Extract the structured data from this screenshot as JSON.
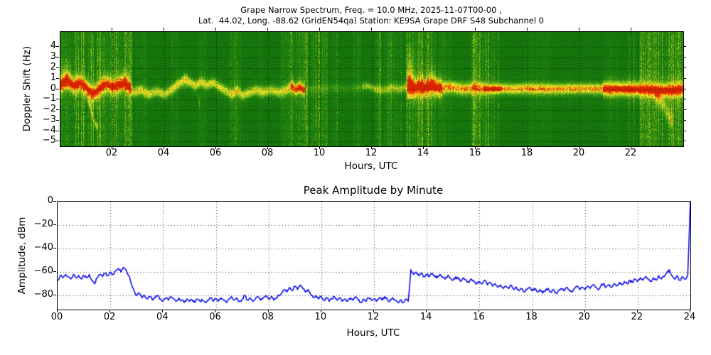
{
  "figure": {
    "title_line1": "Grape Narrow Spectrum, Freq. = 10.0 MHz, 2025-11-07T00-00 ,",
    "title_line2": "Lat.  44.02, Long. -88.62 (GridEN54qa) Station: KE9SA Grape DRF S48 Subchannel 0"
  },
  "chart_data": [
    {
      "type": "heatmap",
      "name": "doppler-spectrogram",
      "title": "Grape Narrow Spectrum, Freq. = 10.0 MHz, 2025-11-07T00-00 , Lat. 44.02, Long. -88.62 (GridEN54qa) Station: KE9SA Grape DRF S48 Subchannel 0",
      "xlabel": "Hours, UTC",
      "ylabel": "Doppler Shift (Hz)",
      "x_range": [
        0,
        24
      ],
      "y_range": [
        -5.45,
        5.45
      ],
      "x_tick_values": [
        2,
        4,
        6,
        8,
        10,
        12,
        14,
        16,
        18,
        20,
        22
      ],
      "x_tick_labels": [
        "02",
        "04",
        "06",
        "08",
        "10",
        "12",
        "14",
        "16",
        "18",
        "20",
        "22"
      ],
      "y_tick_values": [
        4,
        3,
        2,
        1,
        0,
        -1,
        -2,
        -3,
        -4,
        -5
      ],
      "grid": true,
      "colormap_stops": [
        [
          0,
          10,
          95,
          10
        ],
        [
          0.25,
          30,
          130,
          15
        ],
        [
          0.45,
          110,
          180,
          25
        ],
        [
          0.6,
          205,
          220,
          35
        ],
        [
          0.72,
          250,
          235,
          45
        ],
        [
          0.85,
          255,
          150,
          10
        ],
        [
          1,
          215,
          35,
          0
        ]
      ],
      "background_level": 0.1,
      "noise_stripes": [
        [
          0.0,
          0.6,
          0.35
        ],
        [
          0.6,
          2.75,
          0.5
        ],
        [
          2.9,
          3.35,
          0.2
        ],
        [
          4.25,
          4.55,
          0.18
        ],
        [
          5.3,
          5.6,
          0.15
        ],
        [
          6.5,
          6.95,
          0.3
        ],
        [
          7.6,
          7.8,
          0.12
        ],
        [
          8.45,
          9.55,
          0.42
        ],
        [
          9.65,
          10.3,
          0.45
        ],
        [
          10.45,
          10.7,
          0.2
        ],
        [
          11.25,
          11.55,
          0.22
        ],
        [
          12.1,
          12.35,
          0.38
        ],
        [
          12.45,
          13.15,
          0.3
        ],
        [
          13.3,
          14.45,
          0.55
        ],
        [
          14.55,
          15.05,
          0.22
        ],
        [
          15.8,
          16.55,
          0.45
        ],
        [
          16.6,
          16.9,
          0.28
        ],
        [
          17.9,
          18.9,
          0.15
        ],
        [
          21.0,
          21.5,
          0.15
        ],
        [
          21.85,
          22.15,
          0.25
        ],
        [
          22.3,
          24.0,
          0.5
        ]
      ],
      "doppler_trace_hz": [
        [
          0,
          0.4
        ],
        [
          0.25,
          0.9
        ],
        [
          0.5,
          0.3
        ],
        [
          0.75,
          0.6
        ],
        [
          1.0,
          0.1
        ],
        [
          1.2,
          -0.5
        ],
        [
          1.4,
          -0.2
        ],
        [
          1.6,
          0.3
        ],
        [
          1.8,
          0.5
        ],
        [
          2.0,
          0.2
        ],
        [
          2.2,
          0.4
        ],
        [
          2.45,
          0.6
        ],
        [
          2.6,
          0.3
        ],
        [
          2.8,
          -0.3
        ],
        [
          3.1,
          -0.1
        ],
        [
          3.4,
          -0.5
        ],
        [
          3.7,
          -0.2
        ],
        [
          4.0,
          -0.5
        ],
        [
          4.3,
          0.0
        ],
        [
          4.6,
          0.6
        ],
        [
          4.8,
          1.0
        ],
        [
          5.0,
          0.6
        ],
        [
          5.2,
          0.3
        ],
        [
          5.4,
          0.7
        ],
        [
          5.6,
          0.4
        ],
        [
          5.9,
          0.6
        ],
        [
          6.1,
          0.2
        ],
        [
          6.4,
          -0.2
        ],
        [
          6.6,
          -0.5
        ],
        [
          6.8,
          -0.1
        ],
        [
          7.0,
          -0.6
        ],
        [
          7.2,
          -0.4
        ],
        [
          7.5,
          -0.1
        ],
        [
          7.8,
          -0.3
        ],
        [
          8.1,
          -0.1
        ],
        [
          8.4,
          -0.3
        ],
        [
          8.7,
          -0.1
        ],
        [
          8.9,
          0.3
        ],
        [
          9.05,
          -0.1
        ],
        [
          9.2,
          0.2
        ],
        [
          9.35,
          -0.1
        ],
        [
          9.6,
          0.0
        ],
        [
          10.0,
          0.0
        ],
        [
          10.5,
          0.1
        ],
        [
          11.0,
          0.0
        ],
        [
          11.5,
          0.1
        ],
        [
          11.8,
          0.3
        ],
        [
          12.1,
          0.0
        ],
        [
          12.4,
          -0.1
        ],
        [
          12.8,
          0.1
        ],
        [
          13.1,
          0.0
        ],
        [
          13.3,
          0.2
        ],
        [
          13.45,
          0.5
        ],
        [
          13.6,
          0.1
        ],
        [
          13.8,
          0.2
        ],
        [
          14.0,
          0.1
        ],
        [
          14.3,
          0.3
        ],
        [
          14.6,
          0.1
        ],
        [
          15.0,
          0.2
        ],
        [
          15.5,
          0.0
        ],
        [
          16.0,
          0.1
        ],
        [
          16.5,
          0.0
        ],
        [
          17.0,
          0.05
        ],
        [
          17.5,
          0.0
        ],
        [
          18,
          0.05
        ],
        [
          19,
          0.0
        ],
        [
          20,
          0.05
        ],
        [
          21,
          0.0
        ],
        [
          22,
          0.0
        ],
        [
          22.8,
          -0.1
        ],
        [
          23.3,
          -0.15
        ],
        [
          23.7,
          -0.1
        ],
        [
          24,
          0.0
        ]
      ],
      "trace_segments": [
        {
          "from": 0.0,
          "to": 2.7,
          "amp": 0.85,
          "sigma": 0.45,
          "red": true
        },
        {
          "from": 2.7,
          "to": 8.85,
          "amp": 0.5,
          "sigma": 0.3,
          "red": false
        },
        {
          "from": 8.85,
          "to": 9.4,
          "amp": 0.9,
          "sigma": 0.3,
          "red": false
        },
        {
          "from": 9.4,
          "to": 11.6,
          "amp": 0.15,
          "sigma": 0.25,
          "red": false
        },
        {
          "from": 11.6,
          "to": 13.35,
          "amp": 0.35,
          "sigma": 0.25,
          "red": false
        },
        {
          "from": 13.35,
          "to": 14.7,
          "amp": 0.95,
          "sigma": 0.5,
          "red": true
        },
        {
          "from": 14.7,
          "to": 16.3,
          "amp": 0.7,
          "sigma": 0.35,
          "red": false
        },
        {
          "from": 16.3,
          "to": 17.0,
          "amp": 0.75,
          "sigma": 0.3,
          "red": true
        },
        {
          "from": 17.0,
          "to": 20.9,
          "amp": 0.7,
          "sigma": 0.3,
          "red": false
        },
        {
          "from": 20.9,
          "to": 24.0,
          "amp": 0.9,
          "sigma": 0.4,
          "red": true
        }
      ],
      "spurs": [
        {
          "points": [
            [
              1.0,
              -0.5
            ],
            [
              1.15,
              -1.8
            ],
            [
              1.3,
              -3.2
            ],
            [
              1.45,
              -3.7
            ]
          ],
          "amp": 0.45,
          "sigma": 0.25
        },
        {
          "points": [
            [
              22.9,
              -0.6
            ],
            [
              23.2,
              -1.4
            ],
            [
              23.45,
              -2.6
            ],
            [
              23.6,
              -3.1
            ]
          ],
          "amp": 0.4,
          "sigma": 0.5
        },
        {
          "points": [
            [
              5.3,
              -0.8
            ],
            [
              5.35,
              -1.6
            ]
          ],
          "amp": 0.3,
          "sigma": 0.3
        }
      ],
      "plumes": [
        {
          "h": 13.45,
          "w": 0.18,
          "hz_from": -1.0,
          "hz_to": 4.3,
          "amp": 0.55
        },
        {
          "h": 13.9,
          "w": 0.12,
          "hz_from": 0,
          "hz_to": 1.8,
          "amp": 0.25
        },
        {
          "h": 14.3,
          "w": 0.15,
          "hz_from": 0,
          "hz_to": 2.3,
          "amp": 0.3
        },
        {
          "h": 4.8,
          "w": 0.2,
          "hz_from": 0,
          "hz_to": 1.6,
          "amp": 0.2
        },
        {
          "h": 0.15,
          "w": 0.3,
          "hz_from": 0,
          "hz_to": 3.0,
          "amp": 0.3
        },
        {
          "h": 2.5,
          "w": 0.2,
          "hz_from": 0,
          "hz_to": 2.2,
          "amp": 0.25
        }
      ]
    },
    {
      "type": "line",
      "name": "peak-amplitude-by-minute",
      "title": "Peak Amplitude by Minute",
      "xlabel": "Hours, UTC",
      "ylabel": "Amplitude, dBm",
      "x_range": [
        0,
        24
      ],
      "y_range": [
        -92,
        0
      ],
      "x_tick_values": [
        0,
        2,
        4,
        6,
        8,
        10,
        12,
        14,
        16,
        18,
        20,
        22,
        24
      ],
      "x_tick_labels": [
        "00",
        "02",
        "04",
        "06",
        "08",
        "10",
        "12",
        "14",
        "16",
        "18",
        "20",
        "22",
        "24"
      ],
      "y_tick_values": [
        0,
        -20,
        -40,
        -60,
        -80
      ],
      "grid": true,
      "line_color": "#0000ee",
      "x_start": 0,
      "x_step": 0.1,
      "values": [
        -67,
        -63,
        -65,
        -62,
        -64,
        -66,
        -62,
        -65,
        -63,
        -66,
        -63,
        -65,
        -62,
        -67,
        -70,
        -65,
        -62,
        -64,
        -61,
        -63,
        -60,
        -62,
        -59,
        -57,
        -60,
        -56,
        -58,
        -63,
        -70,
        -76,
        -80,
        -78,
        -82,
        -80,
        -83,
        -81,
        -84,
        -82,
        -80,
        -83,
        -85,
        -82,
        -84,
        -81,
        -83,
        -85,
        -82,
        -84,
        -86,
        -83,
        -85,
        -84,
        -86,
        -83,
        -85,
        -84,
        -86,
        -84,
        -82,
        -85,
        -83,
        -85,
        -82,
        -84,
        -86,
        -83,
        -81,
        -84,
        -82,
        -85,
        -83,
        -80,
        -84,
        -82,
        -85,
        -83,
        -81,
        -84,
        -82,
        -80,
        -83,
        -81,
        -84,
        -82,
        -80,
        -78,
        -75,
        -77,
        -73,
        -76,
        -72,
        -75,
        -71,
        -74,
        -77,
        -75,
        -79,
        -82,
        -80,
        -83,
        -81,
        -84,
        -82,
        -85,
        -83,
        -81,
        -84,
        -82,
        -85,
        -83,
        -85,
        -82,
        -84,
        -81,
        -84,
        -86,
        -83,
        -85,
        -82,
        -84,
        -83,
        -85,
        -82,
        -84,
        -81,
        -83,
        -85,
        -82,
        -84,
        -86,
        -84,
        -86,
        -83,
        -85,
        -58,
        -62,
        -60,
        -63,
        -61,
        -64,
        -62,
        -64,
        -61,
        -63,
        -65,
        -62,
        -64,
        -66,
        -63,
        -65,
        -67,
        -64,
        -66,
        -68,
        -65,
        -67,
        -69,
        -66,
        -68,
        -70,
        -68,
        -70,
        -67,
        -71,
        -69,
        -72,
        -70,
        -73,
        -71,
        -74,
        -72,
        -74,
        -71,
        -75,
        -73,
        -76,
        -74,
        -77,
        -75,
        -73,
        -76,
        -74,
        -77,
        -75,
        -78,
        -76,
        -74,
        -77,
        -75,
        -78,
        -76,
        -74,
        -76,
        -73,
        -75,
        -77,
        -74,
        -72,
        -75,
        -73,
        -75,
        -72,
        -74,
        -71,
        -73,
        -75,
        -72,
        -70,
        -73,
        -71,
        -73,
        -70,
        -72,
        -69,
        -71,
        -68,
        -70,
        -67,
        -69,
        -66,
        -68,
        -65,
        -67,
        -64,
        -66,
        -68,
        -65,
        -67,
        -63,
        -66,
        -64,
        -61,
        -58,
        -63,
        -66,
        -63,
        -67,
        -64,
        -66,
        -63,
        0
      ]
    }
  ]
}
